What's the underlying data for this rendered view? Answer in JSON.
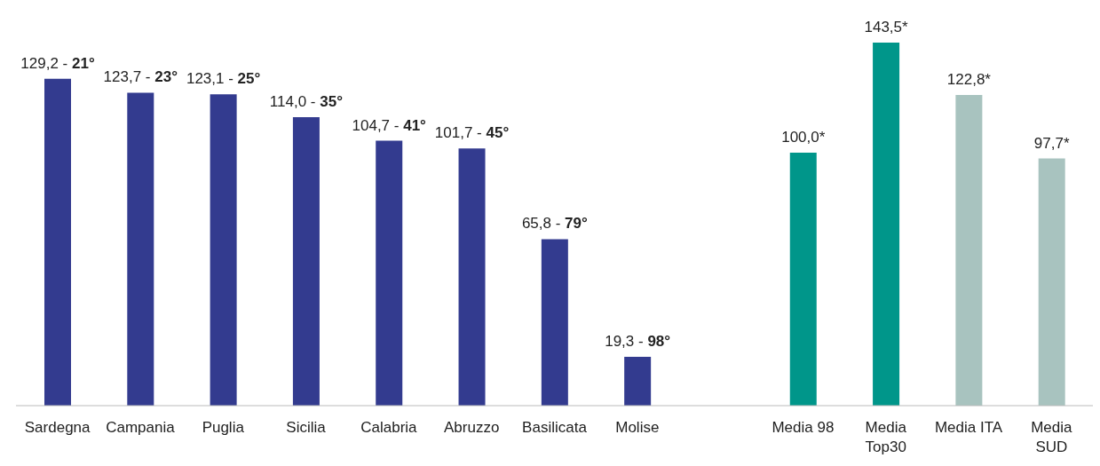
{
  "chart_data": {
    "type": "bar",
    "categories": [
      "Sardegna",
      "Campania",
      "Puglia",
      "Sicilia",
      "Calabria",
      "Abruzzo",
      "Basilicata",
      "Molise",
      null,
      "Media 98",
      "Media\nTop30",
      "Media ITA",
      "Media\nSUD"
    ],
    "values": [
      129.2,
      123.7,
      123.1,
      114.0,
      104.7,
      101.7,
      65.8,
      19.3,
      null,
      100.0,
      143.5,
      122.8,
      97.7
    ],
    "colors": [
      "#333b8f",
      "#333b8f",
      "#333b8f",
      "#333b8f",
      "#333b8f",
      "#333b8f",
      "#333b8f",
      "#333b8f",
      null,
      "#00968a",
      "#00968a",
      "#a8c3bf",
      "#a8c3bf"
    ],
    "value_labels": [
      "129,2 - 21°",
      "123,7 - 23°",
      "123,1 - 25°",
      "114,0 - 35°",
      "104,7 - 41°",
      "101,7 - 45°",
      "65,8 - 79°",
      "19,3 - 98°",
      null,
      "100,0*",
      "143,5*",
      "122,8*",
      "97,7*"
    ]
  }
}
